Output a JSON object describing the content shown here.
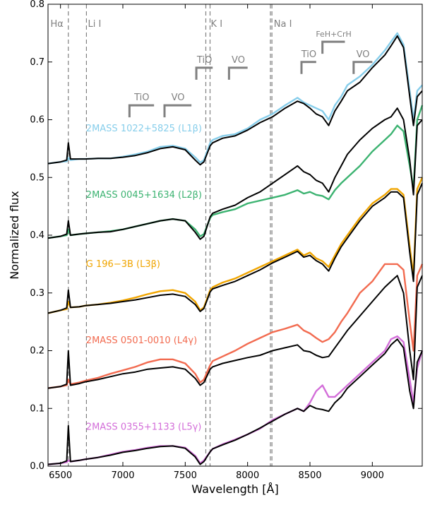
{
  "chart_data": {
    "type": "line",
    "title": "",
    "xlabel": "Wavelength [Å]",
    "ylabel": "Normalized flux",
    "xlim": [
      6400,
      9400
    ],
    "ylim": [
      0.0,
      0.8
    ],
    "xticks": [
      6500,
      7000,
      7500,
      8000,
      8500,
      9000
    ],
    "yticks": [
      0.0,
      0.1,
      0.2,
      0.3,
      0.4,
      0.5,
      0.6,
      0.7,
      0.8
    ],
    "ytick_labels": [
      "0.0",
      "0.1",
      "0.2",
      "0.3",
      "0.4",
      "0.5",
      "0.6",
      "0.7",
      "0.8"
    ],
    "grid": false,
    "line_markers": [
      {
        "label": "Hα",
        "x": [
          6563
        ],
        "label_x": 6420
      },
      {
        "label": "Li I",
        "x": [
          6708
        ],
        "label_x": 6720
      },
      {
        "label": "K I",
        "x": [
          7665,
          7699
        ],
        "label_x": 7705
      },
      {
        "label": "Na I",
        "x": [
          8183,
          8195
        ],
        "label_x": 8210
      }
    ],
    "molecular_bands": [
      {
        "label": "TiO",
        "x_start": 7053,
        "x_end": 7250,
        "y": 0.625
      },
      {
        "label": "VO",
        "x_start": 7334,
        "x_end": 7550,
        "y": 0.625
      },
      {
        "label": "TiO",
        "x_start": 7589,
        "x_end": 7720,
        "y": 0.69
      },
      {
        "label": "VO",
        "x_start": 7851,
        "x_end": 8000,
        "y": 0.69
      },
      {
        "label": "TiO",
        "x_start": 8432,
        "x_end": 8550,
        "y": 0.7
      },
      {
        "label": "FeH+CrH",
        "x_start": 8600,
        "x_end": 8780,
        "y": 0.735
      },
      {
        "label": "VO",
        "x_start": 8850,
        "x_end": 9000,
        "y": 0.7
      }
    ],
    "series": [
      {
        "name": "2MASS 1022+5825 (L1β)",
        "color": "#87ceeb",
        "label_pos": [
          6580,
          0.58
        ],
        "x": [
          6400,
          6500,
          6550,
          6563,
          6580,
          6650,
          6700,
          6800,
          6900,
          7000,
          7100,
          7200,
          7300,
          7400,
          7500,
          7580,
          7620,
          7650,
          7700,
          7720,
          7800,
          7900,
          8000,
          8100,
          8200,
          8300,
          8400,
          8450,
          8500,
          8550,
          8600,
          8650,
          8700,
          8750,
          8800,
          8900,
          9000,
          9100,
          9150,
          9200,
          9250,
          9300,
          9330,
          9360,
          9400
        ],
        "values": [
          0.524,
          0.527,
          0.528,
          0.534,
          0.53,
          0.532,
          0.532,
          0.533,
          0.533,
          0.536,
          0.54,
          0.545,
          0.553,
          0.555,
          0.55,
          0.535,
          0.526,
          0.53,
          0.56,
          0.565,
          0.572,
          0.575,
          0.585,
          0.6,
          0.61,
          0.625,
          0.638,
          0.63,
          0.625,
          0.62,
          0.615,
          0.6,
          0.625,
          0.64,
          0.66,
          0.675,
          0.695,
          0.72,
          0.735,
          0.75,
          0.73,
          0.65,
          0.6,
          0.65,
          0.66
        ]
      },
      {
        "name": "",
        "color": "#000000",
        "x": [
          6400,
          6500,
          6550,
          6563,
          6580,
          6650,
          6700,
          6800,
          6900,
          7000,
          7100,
          7200,
          7300,
          7400,
          7500,
          7580,
          7620,
          7650,
          7700,
          7720,
          7800,
          7900,
          8000,
          8100,
          8200,
          8300,
          8400,
          8450,
          8500,
          8550,
          8600,
          8650,
          8700,
          8750,
          8800,
          8900,
          9000,
          9100,
          9150,
          9200,
          9250,
          9300,
          9330,
          9360,
          9400
        ],
        "values": [
          0.524,
          0.527,
          0.53,
          0.56,
          0.532,
          0.532,
          0.532,
          0.533,
          0.533,
          0.535,
          0.538,
          0.543,
          0.55,
          0.553,
          0.548,
          0.53,
          0.522,
          0.527,
          0.555,
          0.56,
          0.568,
          0.572,
          0.582,
          0.595,
          0.605,
          0.62,
          0.632,
          0.628,
          0.62,
          0.61,
          0.605,
          0.59,
          0.615,
          0.632,
          0.65,
          0.665,
          0.69,
          0.712,
          0.728,
          0.745,
          0.725,
          0.64,
          0.59,
          0.64,
          0.65
        ]
      },
      {
        "name": "2MASS 0045+1634 (L2β)",
        "color": "#3cb371",
        "label_pos": [
          6580,
          0.465
        ],
        "x": [
          6400,
          6500,
          6550,
          6563,
          6580,
          6650,
          6700,
          6800,
          6900,
          7000,
          7100,
          7200,
          7300,
          7400,
          7500,
          7580,
          7620,
          7650,
          7700,
          7720,
          7800,
          7900,
          8000,
          8100,
          8200,
          8300,
          8400,
          8450,
          8500,
          8550,
          8600,
          8650,
          8700,
          8750,
          8800,
          8900,
          9000,
          9100,
          9150,
          9200,
          9250,
          9300,
          9330,
          9360,
          9400
        ],
        "values": [
          0.395,
          0.398,
          0.4,
          0.41,
          0.4,
          0.402,
          0.403,
          0.405,
          0.407,
          0.41,
          0.415,
          0.42,
          0.425,
          0.428,
          0.425,
          0.41,
          0.398,
          0.402,
          0.43,
          0.435,
          0.44,
          0.445,
          0.455,
          0.46,
          0.465,
          0.47,
          0.478,
          0.472,
          0.475,
          0.47,
          0.468,
          0.462,
          0.478,
          0.49,
          0.5,
          0.52,
          0.545,
          0.565,
          0.575,
          0.59,
          0.58,
          0.52,
          0.48,
          0.6,
          0.625
        ]
      },
      {
        "name": "",
        "color": "#000000",
        "x": [
          6400,
          6500,
          6550,
          6563,
          6580,
          6650,
          6700,
          6800,
          6900,
          7000,
          7100,
          7200,
          7300,
          7400,
          7500,
          7580,
          7620,
          7650,
          7700,
          7720,
          7800,
          7900,
          8000,
          8100,
          8200,
          8300,
          8400,
          8450,
          8500,
          8550,
          8600,
          8650,
          8700,
          8750,
          8800,
          8900,
          9000,
          9100,
          9150,
          9200,
          9250,
          9300,
          9330,
          9360,
          9400
        ],
        "values": [
          0.395,
          0.398,
          0.402,
          0.425,
          0.4,
          0.402,
          0.403,
          0.405,
          0.406,
          0.41,
          0.415,
          0.42,
          0.425,
          0.428,
          0.425,
          0.405,
          0.393,
          0.398,
          0.432,
          0.438,
          0.445,
          0.452,
          0.465,
          0.475,
          0.49,
          0.505,
          0.52,
          0.51,
          0.505,
          0.495,
          0.49,
          0.475,
          0.5,
          0.52,
          0.54,
          0.565,
          0.585,
          0.6,
          0.605,
          0.62,
          0.6,
          0.53,
          0.47,
          0.59,
          0.6
        ]
      },
      {
        "name": "G 196−3B (L3β)",
        "color": "#f0a500",
        "label_pos": [
          6580,
          0.345
        ],
        "x": [
          6400,
          6500,
          6550,
          6563,
          6580,
          6650,
          6700,
          6800,
          6900,
          7000,
          7100,
          7200,
          7300,
          7400,
          7500,
          7580,
          7620,
          7650,
          7700,
          7720,
          7800,
          7900,
          8000,
          8100,
          8200,
          8300,
          8400,
          8450,
          8500,
          8550,
          8600,
          8650,
          8700,
          8750,
          8800,
          8900,
          9000,
          9100,
          9150,
          9200,
          9250,
          9300,
          9330,
          9360,
          9400
        ],
        "values": [
          0.265,
          0.27,
          0.272,
          0.285,
          0.275,
          0.276,
          0.278,
          0.28,
          0.283,
          0.287,
          0.292,
          0.298,
          0.303,
          0.305,
          0.3,
          0.285,
          0.27,
          0.275,
          0.305,
          0.31,
          0.318,
          0.325,
          0.335,
          0.345,
          0.355,
          0.365,
          0.375,
          0.365,
          0.37,
          0.36,
          0.355,
          0.345,
          0.365,
          0.385,
          0.4,
          0.43,
          0.455,
          0.47,
          0.48,
          0.48,
          0.47,
          0.38,
          0.33,
          0.48,
          0.5
        ]
      },
      {
        "name": "",
        "color": "#000000",
        "x": [
          6400,
          6500,
          6550,
          6563,
          6580,
          6650,
          6700,
          6800,
          6900,
          7000,
          7100,
          7200,
          7300,
          7400,
          7500,
          7580,
          7620,
          7650,
          7700,
          7720,
          7800,
          7900,
          8000,
          8100,
          8200,
          8300,
          8400,
          8450,
          8500,
          8550,
          8600,
          8650,
          8700,
          8750,
          8800,
          8900,
          9000,
          9100,
          9150,
          9200,
          9250,
          9300,
          9330,
          9360,
          9400
        ],
        "values": [
          0.265,
          0.27,
          0.274,
          0.305,
          0.275,
          0.276,
          0.278,
          0.28,
          0.282,
          0.285,
          0.288,
          0.292,
          0.296,
          0.298,
          0.294,
          0.28,
          0.268,
          0.273,
          0.302,
          0.307,
          0.313,
          0.32,
          0.33,
          0.34,
          0.352,
          0.362,
          0.372,
          0.362,
          0.365,
          0.356,
          0.35,
          0.338,
          0.36,
          0.38,
          0.395,
          0.425,
          0.45,
          0.465,
          0.475,
          0.475,
          0.465,
          0.37,
          0.32,
          0.47,
          0.49
        ]
      },
      {
        "name": "2MASS 0501-0010 (L4γ)",
        "color": "#f26b50",
        "label_pos": [
          6580,
          0.213
        ],
        "x": [
          6400,
          6500,
          6550,
          6563,
          6580,
          6650,
          6700,
          6800,
          6900,
          7000,
          7100,
          7200,
          7300,
          7400,
          7500,
          7580,
          7620,
          7650,
          7700,
          7720,
          7800,
          7900,
          8000,
          8100,
          8200,
          8300,
          8400,
          8450,
          8500,
          8550,
          8600,
          8650,
          8700,
          8750,
          8800,
          8900,
          9000,
          9100,
          9150,
          9200,
          9250,
          9300,
          9330,
          9360,
          9400
        ],
        "values": [
          0.135,
          0.138,
          0.14,
          0.15,
          0.142,
          0.145,
          0.148,
          0.153,
          0.16,
          0.166,
          0.172,
          0.18,
          0.185,
          0.185,
          0.178,
          0.16,
          0.145,
          0.15,
          0.175,
          0.182,
          0.19,
          0.2,
          0.212,
          0.222,
          0.232,
          0.238,
          0.245,
          0.235,
          0.23,
          0.222,
          0.215,
          0.22,
          0.232,
          0.25,
          0.265,
          0.3,
          0.32,
          0.35,
          0.35,
          0.35,
          0.34,
          0.25,
          0.2,
          0.33,
          0.35
        ]
      },
      {
        "name": "",
        "color": "#000000",
        "x": [
          6400,
          6500,
          6550,
          6563,
          6580,
          6650,
          6700,
          6800,
          6900,
          7000,
          7100,
          7200,
          7300,
          7400,
          7500,
          7580,
          7620,
          7650,
          7700,
          7720,
          7800,
          7900,
          8000,
          8100,
          8200,
          8300,
          8400,
          8450,
          8500,
          8550,
          8600,
          8650,
          8700,
          8750,
          8800,
          8900,
          9000,
          9100,
          9150,
          9200,
          9250,
          9300,
          9330,
          9360,
          9400
        ],
        "values": [
          0.135,
          0.138,
          0.142,
          0.2,
          0.14,
          0.143,
          0.146,
          0.15,
          0.155,
          0.16,
          0.163,
          0.168,
          0.17,
          0.172,
          0.168,
          0.152,
          0.14,
          0.145,
          0.168,
          0.172,
          0.178,
          0.183,
          0.188,
          0.192,
          0.2,
          0.205,
          0.21,
          0.2,
          0.198,
          0.192,
          0.188,
          0.19,
          0.205,
          0.22,
          0.235,
          0.26,
          0.285,
          0.31,
          0.32,
          0.33,
          0.3,
          0.2,
          0.15,
          0.31,
          0.33
        ]
      },
      {
        "name": "2MASS 0355+1133 (L5γ)",
        "color": "#d36ed9",
        "label_pos": [
          6580,
          0.063
        ],
        "x": [
          6400,
          6500,
          6550,
          6563,
          6580,
          6650,
          6700,
          6800,
          6900,
          7000,
          7100,
          7200,
          7300,
          7400,
          7500,
          7580,
          7620,
          7650,
          7700,
          7720,
          7800,
          7900,
          8000,
          8100,
          8200,
          8300,
          8400,
          8450,
          8500,
          8550,
          8600,
          8650,
          8700,
          8750,
          8800,
          8900,
          9000,
          9100,
          9150,
          9200,
          9250,
          9300,
          9330,
          9360,
          9400
        ],
        "values": [
          0.003,
          0.005,
          0.007,
          0.01,
          0.008,
          0.01,
          0.012,
          0.015,
          0.02,
          0.025,
          0.028,
          0.032,
          0.035,
          0.035,
          0.032,
          0.018,
          0.005,
          0.01,
          0.025,
          0.03,
          0.038,
          0.046,
          0.055,
          0.065,
          0.08,
          0.09,
          0.1,
          0.095,
          0.11,
          0.13,
          0.14,
          0.12,
          0.12,
          0.13,
          0.14,
          0.16,
          0.18,
          0.2,
          0.22,
          0.225,
          0.215,
          0.15,
          0.11,
          0.17,
          0.2
        ]
      },
      {
        "name": "",
        "color": "#000000",
        "x": [
          6400,
          6500,
          6550,
          6563,
          6580,
          6650,
          6700,
          6800,
          6900,
          7000,
          7100,
          7200,
          7300,
          7400,
          7500,
          7580,
          7620,
          7650,
          7700,
          7720,
          7800,
          7900,
          8000,
          8100,
          8200,
          8300,
          8400,
          8450,
          8500,
          8550,
          8600,
          8650,
          8700,
          8750,
          8800,
          8900,
          9000,
          9100,
          9150,
          9200,
          9250,
          9300,
          9330,
          9360,
          9400
        ],
        "values": [
          0.003,
          0.005,
          0.009,
          0.07,
          0.008,
          0.01,
          0.012,
          0.015,
          0.019,
          0.024,
          0.027,
          0.031,
          0.034,
          0.035,
          0.031,
          0.016,
          0.003,
          0.008,
          0.025,
          0.03,
          0.037,
          0.045,
          0.055,
          0.066,
          0.078,
          0.09,
          0.1,
          0.095,
          0.105,
          0.1,
          0.098,
          0.095,
          0.11,
          0.12,
          0.135,
          0.155,
          0.175,
          0.195,
          0.21,
          0.22,
          0.205,
          0.13,
          0.1,
          0.18,
          0.2
        ]
      }
    ]
  }
}
